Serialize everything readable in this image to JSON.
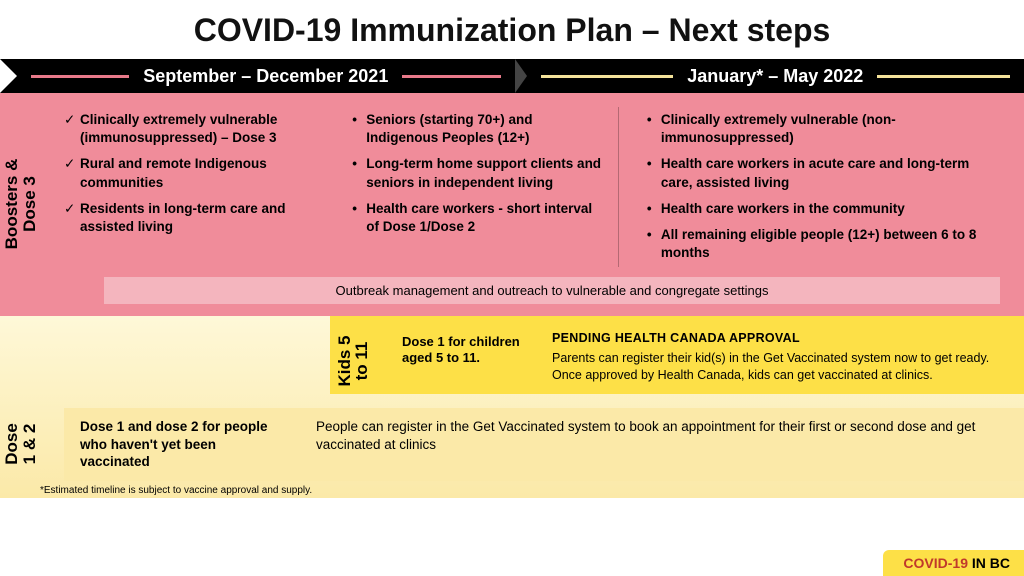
{
  "title": "COVID-19 Immunization Plan – Next steps",
  "timeline": {
    "phase1": "September – December 2021",
    "phase2": "January* – May 2022",
    "colors": {
      "bar_bg": "#000000",
      "phase1_line": "#e87a8a",
      "phase2_line": "#f5e39b"
    }
  },
  "boosters": {
    "label_line1": "Boosters &",
    "label_line2": "Dose 3",
    "background_color": "#f08c9a",
    "col1_checks": [
      "Clinically extremely vulnerable (immunosuppressed) – Dose 3",
      "Rural and remote Indigenous communities",
      "Residents in long-term care and assisted living"
    ],
    "col2_bullets": [
      "Seniors (starting 70+) and Indigenous Peoples (12+)",
      "Long-term home support clients and seniors in independent living",
      "Health care workers - short interval of Dose 1/Dose 2"
    ],
    "col3_bullets": [
      "Clinically extremely vulnerable (non-immunosuppressed)",
      "Health care workers in acute care and long-term care, assisted living",
      "Health care workers in the community",
      "All remaining eligible people (12+) between 6 to 8 months"
    ],
    "outbreak_banner": "Outbreak management and outreach to vulnerable and congregate settings",
    "banner_color": "#f4b5be"
  },
  "kids": {
    "label_line1": "Kids 5",
    "label_line2": "to 11",
    "background_color": "#fde047",
    "desc": "Dose 1 for children aged 5 to 11.",
    "pending_title": "PENDING HEALTH CANADA APPROVAL",
    "pending_body": "Parents can register their kid(s) in the Get Vaccinated system now to get ready. Once approved by Health Canada, kids can get vaccinated at clinics."
  },
  "dose12": {
    "label_line1": "Dose",
    "label_line2": "1 & 2",
    "background_color": "#fbe9a8",
    "lead": "Dose 1 and dose 2 for people who haven't yet been vaccinated",
    "body": "People can register in the Get Vaccinated system to book an appointment for their first or second dose and get vaccinated at clinics"
  },
  "footnote": "*Estimated timeline is subject to vaccine approval and supply.",
  "brand": {
    "covid": "COVID-19",
    "in_bc": " IN BC"
  }
}
